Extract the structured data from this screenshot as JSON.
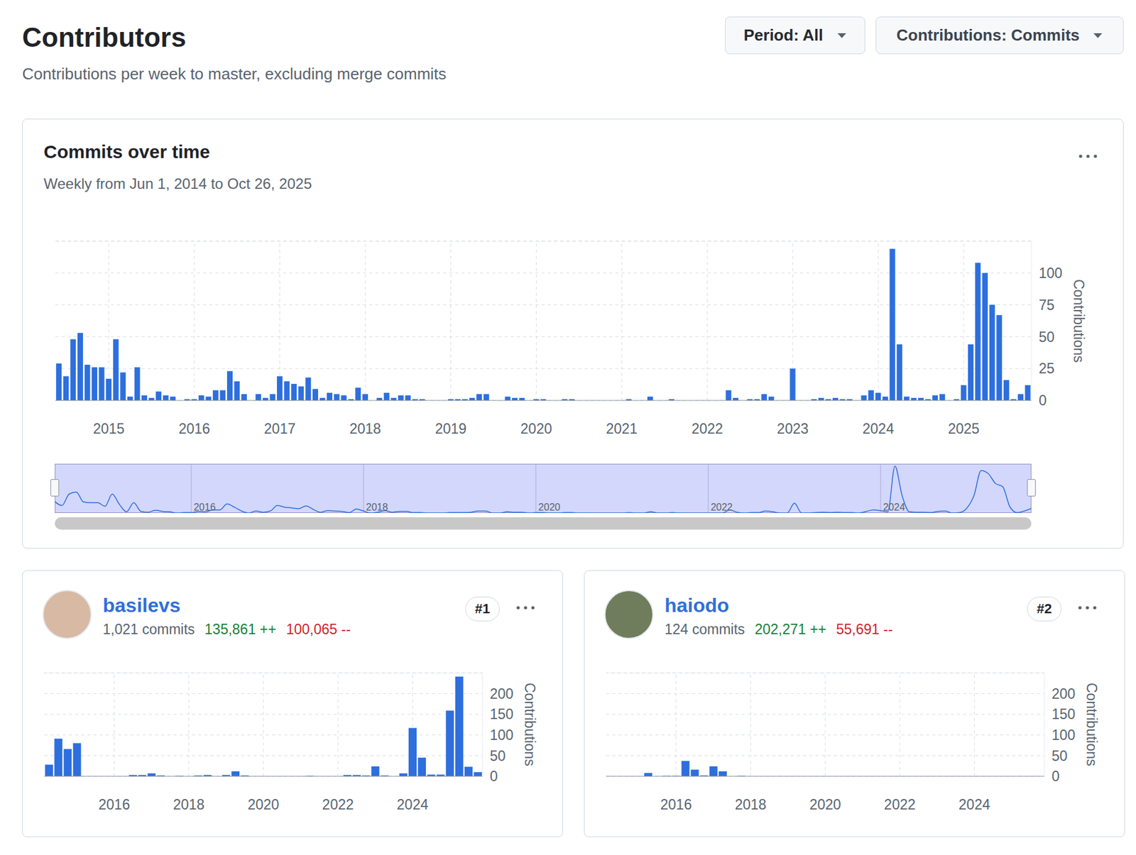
{
  "header": {
    "title": "Contributors",
    "subtitle": "Contributions per week to master, excluding merge commits",
    "period": "Period: All",
    "contributions": "Contributions: Commits"
  },
  "contributors": [
    {
      "name": "basilevs",
      "commits": "1,021 commits",
      "additions": "135,861 ++",
      "deletions": "100,065 --",
      "rank": "#1"
    },
    {
      "name": "haiodo",
      "commits": "124 commits",
      "additions": "202,271 ++",
      "deletions": "55,691 --",
      "rank": "#2"
    }
  ],
  "chart_data": [
    {
      "type": "bar",
      "title": "Commits over time",
      "subtitle": "Weekly from Jun 1, 2014 to Oct 26, 2025",
      "ylabel": "Contributions",
      "color": "#2d6fdd",
      "ylim": [
        0,
        125
      ],
      "yticks": [
        0,
        25,
        50,
        75,
        100
      ],
      "grid": true,
      "categories": [
        null,
        null,
        null,
        null,
        null,
        null,
        null,
        "2015",
        null,
        null,
        null,
        null,
        null,
        null,
        null,
        null,
        null,
        null,
        null,
        "2016",
        null,
        null,
        null,
        null,
        null,
        null,
        null,
        null,
        null,
        null,
        null,
        "2017",
        null,
        null,
        null,
        null,
        null,
        null,
        null,
        null,
        null,
        null,
        null,
        "2018",
        null,
        null,
        null,
        null,
        null,
        null,
        null,
        null,
        null,
        null,
        null,
        "2019",
        null,
        null,
        null,
        null,
        null,
        null,
        null,
        null,
        null,
        null,
        null,
        "2020",
        null,
        null,
        null,
        null,
        null,
        null,
        null,
        null,
        null,
        null,
        null,
        "2021",
        null,
        null,
        null,
        null,
        null,
        null,
        null,
        null,
        null,
        null,
        null,
        "2022",
        null,
        null,
        null,
        null,
        null,
        null,
        null,
        null,
        null,
        null,
        null,
        "2023",
        null,
        null,
        null,
        null,
        null,
        null,
        null,
        null,
        null,
        null,
        null,
        "2024",
        null,
        null,
        null,
        null,
        null,
        null,
        null,
        null,
        null,
        null,
        null,
        "2025",
        null,
        null,
        null,
        null,
        null,
        null,
        null,
        null,
        null
      ],
      "values": [
        29,
        19,
        48,
        53,
        28,
        26,
        26,
        17,
        48,
        22,
        3,
        26,
        4,
        2,
        7,
        4,
        3,
        0,
        1,
        1,
        4,
        3,
        8,
        8,
        23,
        15,
        5,
        0,
        5,
        2,
        5,
        19,
        15,
        13,
        11,
        18,
        9,
        2,
        6,
        5,
        4,
        1,
        10,
        5,
        0,
        2,
        6,
        2,
        4,
        4,
        1,
        1,
        0,
        0,
        0,
        1,
        1,
        1,
        2,
        5,
        5,
        0,
        0,
        3,
        2,
        2,
        0,
        1,
        1,
        0,
        0,
        1,
        1,
        0,
        0,
        0,
        0,
        0,
        0,
        0,
        1,
        0,
        0,
        3,
        0,
        0,
        1,
        0,
        0,
        0,
        0,
        0,
        0,
        0,
        8,
        2,
        0,
        1,
        1,
        5,
        3,
        0,
        0,
        25,
        0,
        0,
        1,
        2,
        1,
        2,
        1,
        1,
        0,
        4,
        8,
        6,
        3,
        119,
        44,
        3,
        2,
        2,
        1,
        4,
        5,
        0,
        1,
        12,
        44,
        108,
        100,
        75,
        67,
        16,
        1,
        5,
        12
      ]
    },
    {
      "type": "line",
      "color": "#2d6fdd",
      "ylim": [
        0,
        125
      ],
      "tick_labels": "x",
      "categories": [
        null,
        null,
        null,
        null,
        null,
        null,
        null,
        null,
        null,
        null,
        null,
        null,
        null,
        null,
        null,
        null,
        null,
        null,
        null,
        "2016",
        null,
        null,
        null,
        null,
        null,
        null,
        null,
        null,
        null,
        null,
        null,
        null,
        null,
        null,
        null,
        null,
        null,
        null,
        null,
        null,
        null,
        null,
        null,
        "2018",
        null,
        null,
        null,
        null,
        null,
        null,
        null,
        null,
        null,
        null,
        null,
        null,
        null,
        null,
        null,
        null,
        null,
        null,
        null,
        null,
        null,
        null,
        null,
        "2020",
        null,
        null,
        null,
        null,
        null,
        null,
        null,
        null,
        null,
        null,
        null,
        null,
        null,
        null,
        null,
        null,
        null,
        null,
        null,
        null,
        null,
        null,
        null,
        "2022",
        null,
        null,
        null,
        null,
        null,
        null,
        null,
        null,
        null,
        null,
        null,
        null,
        null,
        null,
        null,
        null,
        null,
        null,
        null,
        null,
        null,
        null,
        null,
        "2024",
        null,
        null,
        null,
        null,
        null,
        null,
        null,
        null,
        null,
        null,
        null,
        null,
        null,
        null,
        null,
        null,
        null,
        null,
        null,
        null,
        null
      ],
      "values": [
        29,
        19,
        48,
        53,
        28,
        26,
        26,
        17,
        48,
        22,
        3,
        26,
        4,
        2,
        7,
        4,
        3,
        0,
        1,
        1,
        4,
        3,
        8,
        8,
        23,
        15,
        5,
        0,
        5,
        2,
        5,
        19,
        15,
        13,
        11,
        18,
        9,
        2,
        6,
        5,
        4,
        1,
        10,
        5,
        0,
        2,
        6,
        2,
        4,
        4,
        1,
        1,
        0,
        0,
        0,
        1,
        1,
        1,
        2,
        5,
        5,
        0,
        0,
        3,
        2,
        2,
        0,
        1,
        1,
        0,
        0,
        1,
        1,
        0,
        0,
        0,
        0,
        0,
        0,
        0,
        1,
        0,
        0,
        3,
        0,
        0,
        1,
        0,
        0,
        0,
        0,
        0,
        0,
        0,
        8,
        2,
        0,
        1,
        1,
        5,
        3,
        0,
        0,
        25,
        0,
        0,
        1,
        2,
        1,
        2,
        1,
        1,
        0,
        4,
        8,
        6,
        3,
        119,
        44,
        3,
        2,
        2,
        1,
        4,
        5,
        0,
        1,
        12,
        44,
        108,
        100,
        75,
        67,
        16,
        1,
        5,
        12
      ]
    },
    {
      "type": "bar",
      "ylabel": "Contributions",
      "color": "#2d6fdd",
      "ylim": [
        0,
        250
      ],
      "yticks": [
        0,
        50,
        100,
        150,
        200
      ],
      "grid": true,
      "categories": [
        null,
        null,
        null,
        null,
        null,
        null,
        null,
        "2016",
        null,
        null,
        null,
        null,
        null,
        null,
        null,
        "2018",
        null,
        null,
        null,
        null,
        null,
        null,
        null,
        "2020",
        null,
        null,
        null,
        null,
        null,
        null,
        null,
        "2022",
        null,
        null,
        null,
        null,
        null,
        null,
        null,
        "2024",
        null,
        null,
        null,
        null,
        null,
        null,
        null
      ],
      "values": [
        28,
        91,
        66,
        80,
        0,
        0,
        0,
        0,
        0,
        3,
        3,
        7,
        2,
        0,
        1,
        0,
        2,
        3,
        0,
        3,
        12,
        2,
        0,
        0,
        0,
        0,
        0,
        0,
        1,
        0,
        0,
        0,
        3,
        3,
        2,
        24,
        2,
        0,
        7,
        117,
        45,
        4,
        4,
        159,
        241,
        23,
        10
      ]
    },
    {
      "type": "bar",
      "ylabel": "Contributions",
      "color": "#2d6fdd",
      "ylim": [
        0,
        250
      ],
      "yticks": [
        0,
        50,
        100,
        150,
        200
      ],
      "grid": true,
      "categories": [
        null,
        null,
        null,
        null,
        null,
        null,
        null,
        "2016",
        null,
        null,
        null,
        null,
        null,
        null,
        null,
        "2018",
        null,
        null,
        null,
        null,
        null,
        null,
        null,
        "2020",
        null,
        null,
        null,
        null,
        null,
        null,
        null,
        "2022",
        null,
        null,
        null,
        null,
        null,
        null,
        null,
        "2024",
        null,
        null,
        null,
        null,
        null,
        null,
        null
      ],
      "values": [
        0,
        0,
        0,
        0,
        8,
        0,
        1,
        1,
        37,
        16,
        2,
        24,
        12,
        0,
        1,
        0,
        0,
        0,
        0,
        0,
        0,
        0,
        0,
        0,
        0,
        0,
        0,
        0,
        0,
        0,
        0,
        0,
        0,
        0,
        0,
        0,
        0,
        0,
        0,
        0,
        0,
        0,
        0,
        0,
        0,
        0,
        0
      ]
    }
  ]
}
